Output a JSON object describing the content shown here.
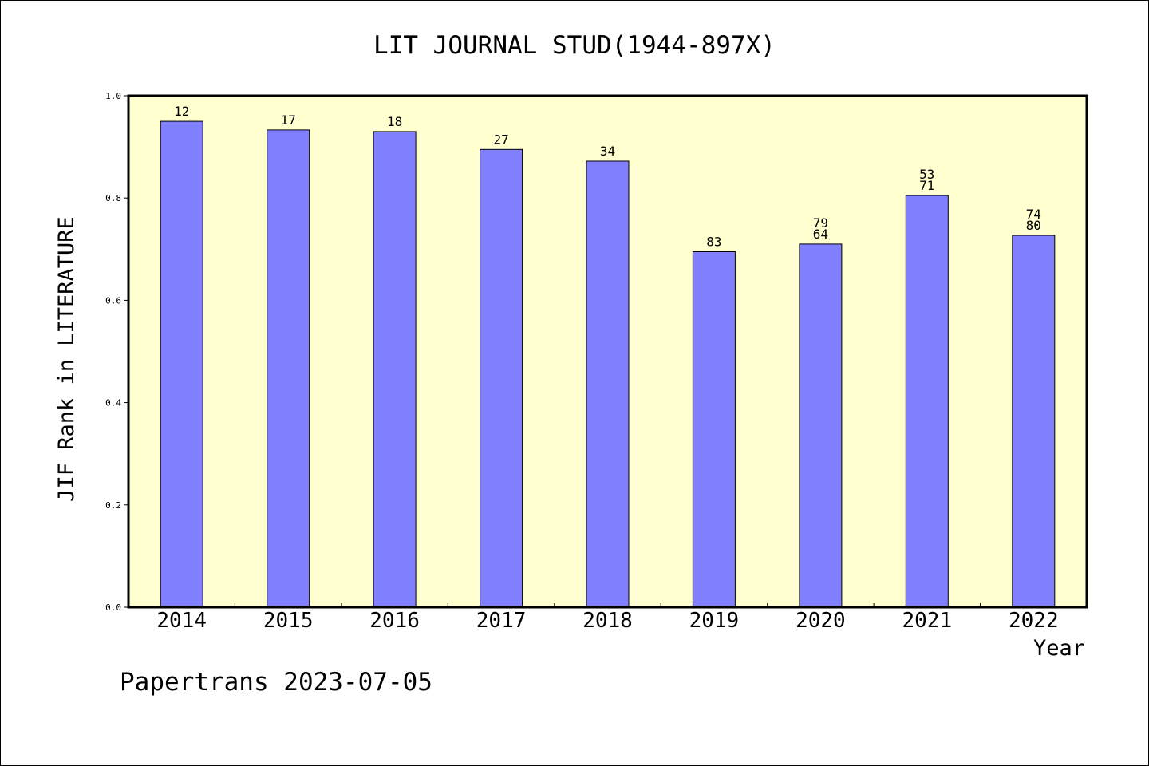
{
  "chart_data": {
    "type": "bar",
    "title": "LIT JOURNAL STUD(1944-897X)",
    "xlabel": "Year",
    "ylabel": "JIF Rank in LITERATURE",
    "ylim": [
      0,
      1.0
    ],
    "yticks": [
      "0.0",
      "0.2",
      "0.4",
      "0.6",
      "0.8",
      "1.0"
    ],
    "grid": false,
    "categories": [
      "2014",
      "2015",
      "2016",
      "2017",
      "2018",
      "2019",
      "2020",
      "2021",
      "2022"
    ],
    "values": [
      0.95,
      0.933,
      0.93,
      0.895,
      0.872,
      0.695,
      0.71,
      0.805,
      0.727
    ],
    "bar_labels": [
      [
        "12"
      ],
      [
        "17"
      ],
      [
        "18"
      ],
      [
        "27"
      ],
      [
        "34"
      ],
      [
        "83"
      ],
      [
        "79",
        "64"
      ],
      [
        "53",
        "71"
      ],
      [
        "74",
        "80"
      ]
    ],
    "colors": {
      "bar_fill": "#8080ff",
      "plot_background": "#ffffd0",
      "axis": "#000000"
    }
  },
  "footer": {
    "text": "Papertrans 2023-07-05"
  }
}
